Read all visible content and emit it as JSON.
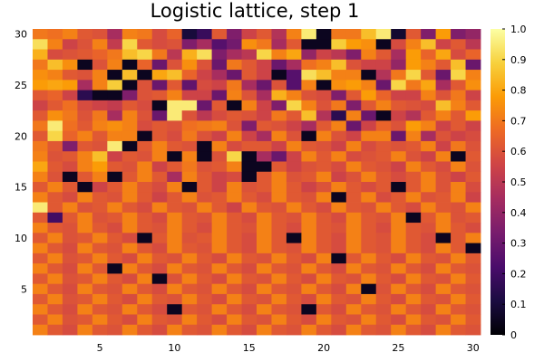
{
  "chart_data": {
    "type": "heatmap",
    "title": "Logistic lattice, step 1",
    "xlabel": "",
    "ylabel": "",
    "grid": false,
    "x_range": [
      0.5,
      30.5
    ],
    "y_range": [
      0.5,
      30.5
    ],
    "x_ticks": [
      5,
      10,
      15,
      20,
      25,
      30
    ],
    "y_ticks": [
      5,
      10,
      15,
      20,
      25,
      30
    ],
    "colorbar": {
      "range": [
        0,
        1
      ],
      "ticks": [
        0,
        0.1,
        0.2,
        0.3,
        0.4,
        0.5,
        0.6,
        0.7,
        0.8,
        0.9,
        1.0
      ],
      "tick_labels": [
        "0",
        "0.1",
        "0.2",
        "0.3",
        "0.4",
        "0.5",
        "0.6",
        "0.7",
        "0.8",
        "0.9",
        "1.0"
      ],
      "colormap": "inferno",
      "colormap_stops": [
        "#000004",
        "#1b0c41",
        "#4a0c6b",
        "#781c6d",
        "#a52c60",
        "#cf4446",
        "#ed6925",
        "#fb9b06",
        "#f7d13d",
        "#fcffa4"
      ]
    },
    "rows_note": "rows ordered top (y=30) to bottom (y=1); 30 columns each, x=1..30",
    "rows": [
      [
        0.7,
        0.68,
        0.72,
        0.62,
        0.6,
        0.45,
        0.72,
        0.7,
        0.58,
        0.65,
        0.1,
        0.18,
        0.62,
        0.35,
        0.55,
        0.62,
        0.48,
        0.72,
        0.95,
        0.05,
        0.7,
        0.7,
        0.85,
        0.95,
        0.08,
        0.62,
        0.35,
        0.78,
        0.35,
        0.4
      ],
      [
        0.92,
        0.72,
        0.55,
        0.6,
        0.72,
        0.52,
        0.9,
        0.62,
        0.58,
        0.6,
        0.35,
        0.45,
        0.25,
        0.32,
        0.75,
        0.7,
        0.45,
        0.62,
        0.05,
        0.05,
        0.88,
        0.78,
        0.75,
        0.05,
        0.58,
        0.72,
        0.85,
        0.55,
        0.62,
        0.5
      ],
      [
        0.82,
        0.58,
        0.6,
        0.62,
        0.65,
        0.7,
        0.85,
        0.9,
        0.7,
        0.5,
        0.82,
        0.92,
        0.35,
        0.45,
        0.5,
        0.9,
        0.72,
        0.8,
        0.4,
        0.55,
        0.5,
        0.35,
        0.72,
        0.62,
        0.45,
        0.78,
        0.65,
        0.8,
        0.58,
        0.65
      ],
      [
        0.7,
        0.85,
        0.75,
        0.05,
        0.6,
        0.72,
        0.05,
        0.65,
        0.3,
        0.6,
        0.75,
        0.6,
        0.3,
        0.7,
        0.62,
        0.55,
        0.3,
        0.45,
        0.68,
        0.72,
        0.85,
        0.6,
        0.55,
        0.55,
        0.4,
        0.78,
        0.72,
        0.62,
        0.85,
        0.3
      ],
      [
        0.75,
        0.72,
        0.62,
        0.6,
        0.72,
        0.05,
        0.85,
        0.05,
        0.8,
        0.85,
        0.65,
        0.55,
        0.45,
        0.3,
        0.62,
        0.55,
        0.05,
        0.25,
        0.92,
        0.85,
        0.72,
        0.72,
        0.05,
        0.48,
        0.7,
        0.9,
        0.62,
        0.3,
        0.9,
        0.72
      ],
      [
        0.78,
        0.8,
        0.78,
        0.45,
        0.72,
        0.88,
        0.05,
        0.6,
        0.3,
        0.62,
        0.28,
        0.58,
        0.55,
        0.7,
        0.45,
        0.3,
        0.6,
        0.25,
        0.72,
        0.05,
        0.75,
        0.78,
        0.72,
        0.3,
        0.9,
        0.7,
        0.8,
        0.45,
        0.62,
        0.75
      ],
      [
        0.62,
        0.65,
        0.55,
        0.15,
        0.05,
        0.05,
        0.35,
        0.6,
        0.62,
        0.72,
        0.55,
        0.55,
        0.3,
        0.72,
        0.6,
        0.45,
        0.82,
        0.72,
        0.6,
        0.58,
        0.35,
        0.62,
        0.78,
        0.65,
        0.55,
        0.55,
        0.72,
        0.6,
        0.7,
        0.55
      ],
      [
        0.55,
        0.62,
        0.68,
        0.58,
        0.55,
        0.52,
        0.62,
        0.58,
        0.05,
        0.95,
        0.95,
        0.3,
        0.62,
        0.05,
        0.72,
        0.55,
        0.35,
        0.9,
        0.72,
        0.6,
        0.7,
        0.35,
        0.62,
        0.72,
        0.62,
        0.6,
        0.58,
        0.85,
        0.72,
        0.62
      ],
      [
        0.62,
        0.75,
        0.7,
        0.6,
        0.7,
        0.45,
        0.72,
        0.6,
        0.3,
        0.95,
        0.6,
        0.5,
        0.58,
        0.62,
        0.6,
        0.55,
        0.7,
        0.62,
        0.85,
        0.48,
        0.15,
        0.72,
        0.3,
        0.05,
        0.55,
        0.48,
        0.62,
        0.72,
        0.62,
        0.78
      ],
      [
        0.7,
        0.95,
        0.68,
        0.62,
        0.72,
        0.75,
        0.72,
        0.58,
        0.62,
        0.6,
        0.68,
        0.7,
        0.72,
        0.6,
        0.35,
        0.62,
        0.6,
        0.55,
        0.45,
        0.62,
        0.72,
        0.3,
        0.55,
        0.65,
        0.6,
        0.78,
        0.72,
        0.55,
        0.62,
        0.55
      ],
      [
        0.62,
        0.9,
        0.65,
        0.72,
        0.62,
        0.72,
        0.72,
        0.05,
        0.62,
        0.58,
        0.7,
        0.6,
        0.55,
        0.72,
        0.55,
        0.45,
        0.72,
        0.6,
        0.05,
        0.72,
        0.6,
        0.55,
        0.72,
        0.72,
        0.3,
        0.72,
        0.45,
        0.6,
        0.55,
        0.58
      ],
      [
        0.7,
        0.62,
        0.35,
        0.62,
        0.6,
        0.95,
        0.05,
        0.62,
        0.72,
        0.62,
        0.6,
        0.05,
        0.72,
        0.58,
        0.62,
        0.62,
        0.55,
        0.72,
        0.62,
        0.6,
        0.55,
        0.72,
        0.58,
        0.62,
        0.6,
        0.62,
        0.72,
        0.55,
        0.7,
        0.6
      ],
      [
        0.72,
        0.6,
        0.62,
        0.72,
        0.85,
        0.55,
        0.62,
        0.6,
        0.72,
        0.05,
        0.72,
        0.05,
        0.6,
        0.9,
        0.05,
        0.45,
        0.3,
        0.55,
        0.72,
        0.62,
        0.72,
        0.58,
        0.6,
        0.62,
        0.72,
        0.6,
        0.55,
        0.72,
        0.05,
        0.62
      ],
      [
        0.8,
        0.62,
        0.58,
        0.72,
        0.78,
        0.62,
        0.6,
        0.72,
        0.55,
        0.62,
        0.7,
        0.6,
        0.62,
        0.72,
        0.05,
        0.05,
        0.62,
        0.55,
        0.6,
        0.62,
        0.58,
        0.72,
        0.62,
        0.6,
        0.55,
        0.72,
        0.62,
        0.58,
        0.72,
        0.6
      ],
      [
        0.72,
        0.6,
        0.05,
        0.62,
        0.72,
        0.05,
        0.62,
        0.72,
        0.62,
        0.45,
        0.72,
        0.62,
        0.55,
        0.58,
        0.05,
        0.62,
        0.72,
        0.6,
        0.62,
        0.72,
        0.55,
        0.6,
        0.72,
        0.62,
        0.58,
        0.62,
        0.72,
        0.6,
        0.55,
        0.62
      ],
      [
        0.62,
        0.72,
        0.62,
        0.05,
        0.55,
        0.62,
        0.72,
        0.62,
        0.58,
        0.72,
        0.05,
        0.62,
        0.55,
        0.72,
        0.6,
        0.62,
        0.72,
        0.62,
        0.55,
        0.6,
        0.72,
        0.62,
        0.58,
        0.62,
        0.05,
        0.62,
        0.72,
        0.6,
        0.72,
        0.58
      ],
      [
        0.72,
        0.62,
        0.58,
        0.72,
        0.62,
        0.6,
        0.72,
        0.62,
        0.55,
        0.62,
        0.72,
        0.6,
        0.62,
        0.72,
        0.62,
        0.58,
        0.72,
        0.62,
        0.6,
        0.72,
        0.05,
        0.62,
        0.72,
        0.58,
        0.62,
        0.72,
        0.6,
        0.62,
        0.72,
        0.55
      ],
      [
        0.95,
        0.62,
        0.72,
        0.6,
        0.62,
        0.72,
        0.62,
        0.58,
        0.72,
        0.62,
        0.6,
        0.72,
        0.62,
        0.55,
        0.72,
        0.62,
        0.6,
        0.72,
        0.62,
        0.58,
        0.72,
        0.62,
        0.6,
        0.72,
        0.62,
        0.58,
        0.72,
        0.62,
        0.6,
        0.72
      ],
      [
        0.62,
        0.2,
        0.62,
        0.72,
        0.6,
        0.62,
        0.72,
        0.62,
        0.58,
        0.72,
        0.62,
        0.6,
        0.72,
        0.62,
        0.58,
        0.72,
        0.62,
        0.6,
        0.72,
        0.62,
        0.58,
        0.72,
        0.62,
        0.6,
        0.72,
        0.05,
        0.62,
        0.72,
        0.6,
        0.62
      ],
      [
        0.72,
        0.62,
        0.6,
        0.72,
        0.62,
        0.58,
        0.72,
        0.62,
        0.6,
        0.72,
        0.62,
        0.58,
        0.72,
        0.62,
        0.6,
        0.72,
        0.62,
        0.58,
        0.72,
        0.62,
        0.6,
        0.72,
        0.62,
        0.58,
        0.72,
        0.62,
        0.6,
        0.72,
        0.62,
        0.58
      ],
      [
        0.62,
        0.72,
        0.6,
        0.62,
        0.72,
        0.62,
        0.58,
        0.05,
        0.62,
        0.72,
        0.6,
        0.62,
        0.72,
        0.62,
        0.58,
        0.72,
        0.62,
        0.05,
        0.72,
        0.62,
        0.58,
        0.72,
        0.62,
        0.6,
        0.72,
        0.62,
        0.58,
        0.05,
        0.62,
        0.72
      ],
      [
        0.72,
        0.62,
        0.58,
        0.72,
        0.62,
        0.6,
        0.72,
        0.62,
        0.58,
        0.72,
        0.62,
        0.6,
        0.72,
        0.62,
        0.58,
        0.72,
        0.62,
        0.6,
        0.72,
        0.62,
        0.58,
        0.72,
        0.62,
        0.6,
        0.72,
        0.62,
        0.58,
        0.72,
        0.62,
        0.05
      ],
      [
        0.62,
        0.72,
        0.6,
        0.62,
        0.72,
        0.62,
        0.58,
        0.72,
        0.62,
        0.6,
        0.72,
        0.62,
        0.58,
        0.72,
        0.62,
        0.6,
        0.72,
        0.62,
        0.58,
        0.72,
        0.05,
        0.62,
        0.72,
        0.62,
        0.58,
        0.72,
        0.62,
        0.6,
        0.72,
        0.62
      ],
      [
        0.72,
        0.62,
        0.58,
        0.72,
        0.62,
        0.05,
        0.72,
        0.62,
        0.58,
        0.72,
        0.62,
        0.6,
        0.72,
        0.62,
        0.58,
        0.72,
        0.62,
        0.6,
        0.72,
        0.62,
        0.58,
        0.72,
        0.62,
        0.6,
        0.72,
        0.62,
        0.58,
        0.72,
        0.62,
        0.6
      ],
      [
        0.62,
        0.72,
        0.6,
        0.62,
        0.72,
        0.62,
        0.58,
        0.72,
        0.05,
        0.6,
        0.72,
        0.62,
        0.58,
        0.72,
        0.62,
        0.6,
        0.72,
        0.62,
        0.58,
        0.72,
        0.62,
        0.6,
        0.72,
        0.62,
        0.58,
        0.72,
        0.62,
        0.6,
        0.72,
        0.62
      ],
      [
        0.72,
        0.62,
        0.58,
        0.72,
        0.62,
        0.6,
        0.72,
        0.62,
        0.58,
        0.72,
        0.62,
        0.6,
        0.72,
        0.62,
        0.58,
        0.72,
        0.62,
        0.6,
        0.72,
        0.62,
        0.58,
        0.72,
        0.05,
        0.6,
        0.72,
        0.62,
        0.58,
        0.72,
        0.62,
        0.6
      ],
      [
        0.62,
        0.72,
        0.6,
        0.62,
        0.72,
        0.62,
        0.58,
        0.72,
        0.62,
        0.6,
        0.72,
        0.62,
        0.58,
        0.72,
        0.62,
        0.6,
        0.72,
        0.62,
        0.58,
        0.72,
        0.62,
        0.6,
        0.72,
        0.62,
        0.58,
        0.72,
        0.62,
        0.6,
        0.72,
        0.62
      ],
      [
        0.72,
        0.62,
        0.58,
        0.72,
        0.62,
        0.6,
        0.72,
        0.62,
        0.58,
        0.05,
        0.62,
        0.6,
        0.72,
        0.62,
        0.58,
        0.72,
        0.62,
        0.6,
        0.05,
        0.62,
        0.58,
        0.72,
        0.62,
        0.6,
        0.72,
        0.62,
        0.58,
        0.72,
        0.62,
        0.6
      ],
      [
        0.62,
        0.72,
        0.6,
        0.62,
        0.72,
        0.62,
        0.58,
        0.72,
        0.62,
        0.6,
        0.72,
        0.62,
        0.58,
        0.72,
        0.62,
        0.6,
        0.72,
        0.62,
        0.58,
        0.72,
        0.62,
        0.6,
        0.72,
        0.62,
        0.58,
        0.72,
        0.62,
        0.6,
        0.72,
        0.62
      ],
      [
        0.72,
        0.62,
        0.58,
        0.72,
        0.62,
        0.6,
        0.72,
        0.62,
        0.58,
        0.72,
        0.62,
        0.6,
        0.72,
        0.62,
        0.58,
        0.72,
        0.62,
        0.6,
        0.72,
        0.62,
        0.58,
        0.72,
        0.62,
        0.6,
        0.72,
        0.62,
        0.58,
        0.72,
        0.62,
        0.6
      ]
    ]
  }
}
